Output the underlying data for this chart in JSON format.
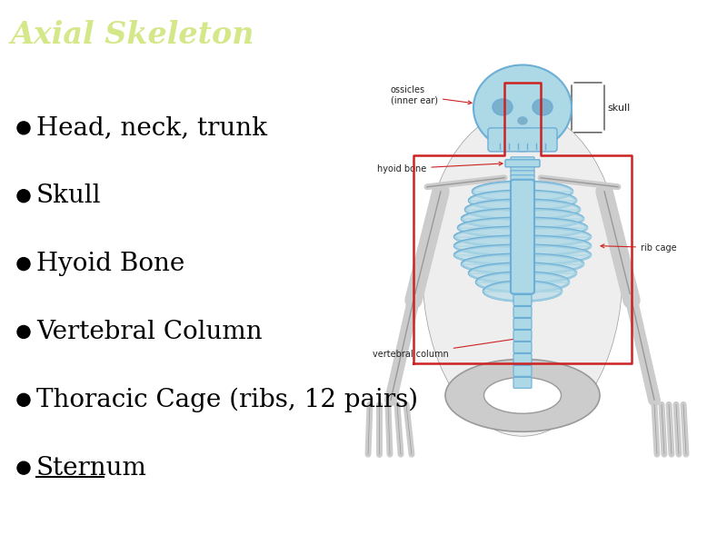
{
  "title": "Axial Skeleton",
  "title_color": "#d4e88a",
  "title_bg_color": "#000000",
  "title_fontsize": 24,
  "bg_color": "#ffffff",
  "bullet_items": [
    {
      "text": "Head, neck, trunk",
      "underline": false
    },
    {
      "text": "Skull",
      "underline": false
    },
    {
      "text": "Hyoid Bone",
      "underline": false
    },
    {
      "text": "Vertebral Column",
      "underline": false
    },
    {
      "text": "Thoracic Cage (ribs, 12 pairs)",
      "underline": false
    },
    {
      "text": "Sternum",
      "underline": true
    }
  ],
  "bullet_color": "#000000",
  "bullet_char": "●",
  "bullet_fontsize": 20,
  "text_fontsize": 20,
  "title_bar_height": 0.11,
  "fig_width": 8.0,
  "fig_height": 6.0,
  "blue_fill": "#add8e6",
  "blue_edge": "#6baed6",
  "gray_fill": "#cccccc",
  "gray_edge": "#999999",
  "red_color": "#cc2222",
  "dark_color": "#222222",
  "label_fontsize": 7,
  "skeleton_labels": {
    "skull": "skull",
    "ossicles": "ossicles\n(inner ear)",
    "hyoid": "hyoid bone",
    "rib_cage": "rib cage",
    "vertebral": "vertebral column"
  }
}
